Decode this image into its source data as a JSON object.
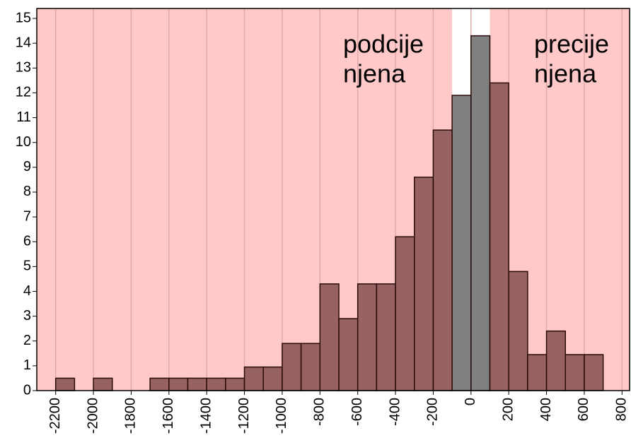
{
  "chart_data": {
    "type": "histogram",
    "bins": [
      -2200,
      -2100,
      -2000,
      -1900,
      -1800,
      -1700,
      -1600,
      -1500,
      -1400,
      -1300,
      -1200,
      -1100,
      -1000,
      -900,
      -800,
      -700,
      -600,
      -500,
      -400,
      -300,
      -200,
      -100,
      0,
      100,
      200,
      300,
      400,
      500,
      600,
      700
    ],
    "values": [
      0.5,
      0,
      0.5,
      0,
      0,
      0.5,
      0.5,
      0.5,
      0.5,
      0.5,
      0.95,
      0.95,
      1.9,
      1.9,
      4.3,
      2.9,
      4.3,
      4.3,
      6.2,
      8.6,
      10.5,
      11.9,
      14.3,
      12.4,
      4.8,
      1.45,
      2.4,
      1.45,
      1.45
    ],
    "colors": [
      "#966262",
      "#966262",
      "#966262",
      "#966262",
      "#966262",
      "#966262",
      "#966262",
      "#966262",
      "#966262",
      "#966262",
      "#966262",
      "#966262",
      "#966262",
      "#966262",
      "#966262",
      "#966262",
      "#966262",
      "#966262",
      "#966262",
      "#966262",
      "#966262",
      "#808080",
      "#808080",
      "#966262",
      "#966262",
      "#966262",
      "#966262",
      "#966262",
      "#966262"
    ],
    "xlim": [
      -2300,
      840
    ],
    "ylim": [
      0,
      15.4
    ],
    "xticks": [
      -2200,
      -2000,
      -1800,
      -1600,
      -1400,
      -1200,
      -1000,
      -800,
      -600,
      -400,
      -200,
      0,
      200,
      400,
      600,
      800
    ],
    "yticks": [
      0,
      1,
      2,
      3,
      4,
      5,
      6,
      7,
      8,
      9,
      10,
      11,
      12,
      13,
      14,
      15
    ],
    "grid": true,
    "background_color": "#ffc9c9",
    "neutral_range": [
      -100,
      100
    ],
    "neutral_color": "#ffffff",
    "annotations": [
      {
        "lines": [
          "podcije",
          "njena"
        ]
      },
      {
        "lines": [
          "precije",
          "njena"
        ]
      }
    ]
  }
}
